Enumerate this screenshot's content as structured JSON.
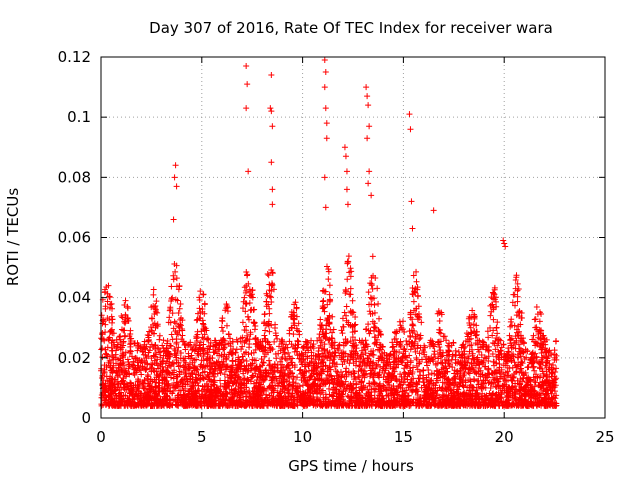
{
  "chart_data": {
    "type": "scatter",
    "title": "Day 307 of 2016, Rate Of TEC Index for receiver wara",
    "xlabel": "GPS time / hours",
    "ylabel": "ROTI / TECUs",
    "xlim": [
      0,
      25
    ],
    "ylim": [
      0,
      0.12
    ],
    "xticks": [
      0,
      5,
      10,
      15,
      20,
      25
    ],
    "xtick_labels": [
      "0",
      "5",
      "10",
      "15",
      "20",
      "25"
    ],
    "yticks": [
      0,
      0.02,
      0.04,
      0.06,
      0.08,
      0.1,
      0.12
    ],
    "ytick_labels": [
      "0",
      "0.02",
      "0.04",
      "0.06",
      "0.08",
      "0.1",
      "0.12"
    ],
    "grid": true,
    "marker": "+",
    "color": "#ff0000",
    "data_x_range": [
      0,
      22.6
    ],
    "series": [
      {
        "name": "ROTI",
        "x": [
          7.2,
          7.25,
          7.2,
          7.3,
          8.45,
          8.4,
          8.45,
          8.5,
          8.45,
          8.5,
          8.5,
          11.1,
          11.15,
          11.1,
          11.15,
          11.2,
          11.2,
          11.1,
          11.15,
          13.15,
          13.2,
          13.25,
          13.3,
          13.2,
          13.3,
          13.25,
          13.4,
          15.3,
          15.35,
          15.4,
          15.45,
          3.7,
          3.65,
          3.75,
          3.6,
          16.5,
          12.1,
          12.15,
          12.2,
          12.2,
          12.25,
          19.95,
          20.0,
          20.05
        ],
        "y": [
          0.117,
          0.111,
          0.103,
          0.082,
          0.114,
          0.103,
          0.102,
          0.097,
          0.085,
          0.076,
          0.071,
          0.119,
          0.115,
          0.11,
          0.103,
          0.098,
          0.093,
          0.08,
          0.07,
          0.11,
          0.107,
          0.104,
          0.097,
          0.093,
          0.082,
          0.078,
          0.074,
          0.101,
          0.096,
          0.072,
          0.063,
          0.084,
          0.08,
          0.077,
          0.066,
          0.069,
          0.09,
          0.087,
          0.082,
          0.076,
          0.071,
          0.059,
          0.058,
          0.057
        ]
      }
    ]
  }
}
